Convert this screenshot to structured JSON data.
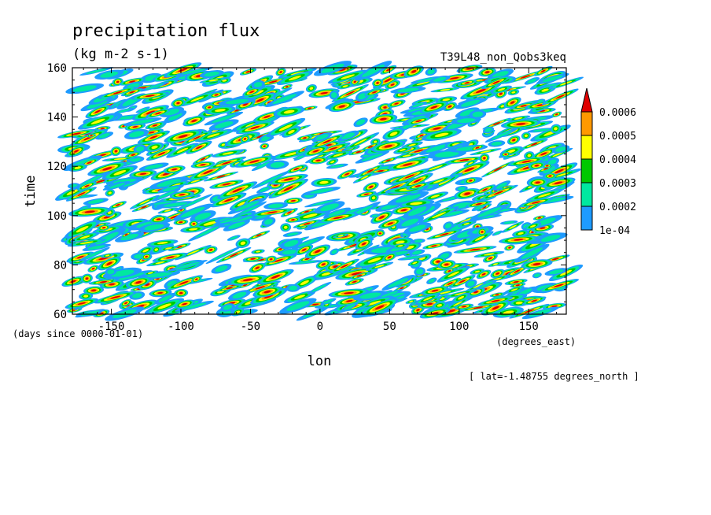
{
  "chart_data": {
    "type": "heatmap",
    "title": "precipitation flux",
    "units": "(kg m-2 s-1)",
    "run_label": "T39L48_non_Qobs3keq",
    "xlabel": "lon",
    "ylabel": "time",
    "x_unit_label": "(degrees_east)",
    "y_unit_label": "(days since 0000-01-01)",
    "slice_label": "[ lat=-1.48755 degrees_north ]",
    "xlim": [
      -178,
      177
    ],
    "ylim": [
      60,
      160
    ],
    "x_ticks": [
      -150,
      -100,
      -50,
      0,
      50,
      100,
      150
    ],
    "x_tick_labels": [
      "-150",
      "-100",
      "-50",
      "0",
      "50",
      "100",
      "150"
    ],
    "y_ticks": [
      60,
      80,
      100,
      120,
      140,
      160
    ],
    "y_tick_labels": [
      "60",
      "80",
      "100",
      "120",
      "140",
      "160"
    ],
    "levels": [
      0.0001,
      0.0002,
      0.0003,
      0.0004,
      0.0005,
      0.0006
    ],
    "colorbar_labels": [
      "1e-04",
      "0.0002",
      "0.0003",
      "0.0004",
      "0.0005",
      "0.0006"
    ],
    "colors": [
      "#1e9bff",
      "#00e8a0",
      "#00c800",
      "#ffff00",
      "#ff9900",
      "#e00000"
    ],
    "grid": false
  }
}
